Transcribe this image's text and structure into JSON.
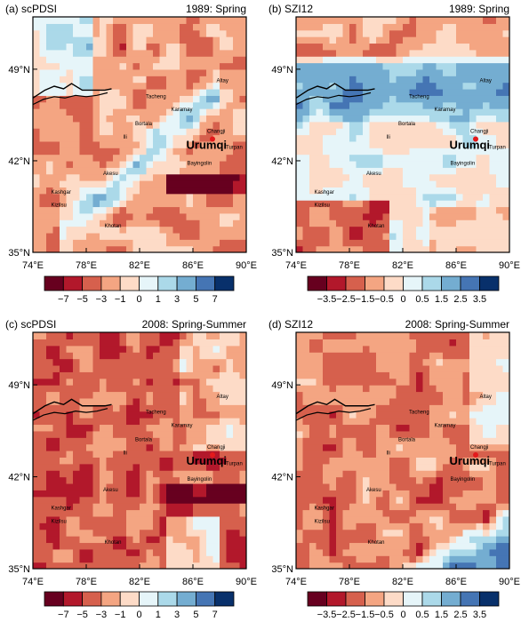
{
  "panels": [
    {
      "label": "(a) scPDSI",
      "period": "1989: Spring",
      "colorbar": [
        "−7",
        "−5",
        "−3",
        "−1",
        "0",
        "1",
        "3",
        "5",
        "7"
      ],
      "pattern": "a"
    },
    {
      "label": "(b) SZI12",
      "period": "1989: Spring",
      "colorbar": [
        "−3.5",
        "−2.5",
        "−1.5",
        "−0.5",
        "0",
        "0.5",
        "1.5",
        "2.5",
        "3.5"
      ],
      "pattern": "b"
    },
    {
      "label": "(c) scPDSI",
      "period": "2008: Spring-Summer",
      "colorbar": [
        "−7",
        "−5",
        "−3",
        "−1",
        "0",
        "1",
        "3",
        "5",
        "7"
      ],
      "pattern": "c"
    },
    {
      "label": "(d) SZI12",
      "period": "2008: Spring-Summer",
      "colorbar": [
        "−3.5",
        "−2.5",
        "−1.5",
        "−0.5",
        "0",
        "0.5",
        "1.5",
        "2.5",
        "3.5"
      ],
      "pattern": "d"
    }
  ],
  "axes": {
    "lat_ticks": [
      "49°N",
      "42°N",
      "35°N"
    ],
    "lon_ticks": [
      "74°E",
      "78°E",
      "82°E",
      "86°E",
      "90°E"
    ]
  },
  "places": [
    {
      "name": "Altay"
    },
    {
      "name": "Tacheng"
    },
    {
      "name": "Karamay"
    },
    {
      "name": "Bortala"
    },
    {
      "name": "Changji"
    },
    {
      "name": "Urumqi"
    },
    {
      "name": "Turpan"
    },
    {
      "name": "Ili"
    },
    {
      "name": "Bayingolin"
    },
    {
      "name": "Akesu"
    },
    {
      "name": "Kashgar"
    },
    {
      "name": "Kizilsu"
    },
    {
      "name": "Khotan"
    }
  ],
  "colors": {
    "dry_scale": [
      "#67001f",
      "#b2182b",
      "#d6604d",
      "#f4a582",
      "#fddbc7"
    ],
    "wet_scale": [
      "#e0f3f8",
      "#abd9e9",
      "#74add1",
      "#4575b4",
      "#08306b"
    ],
    "city_marker": "#e41a1c"
  }
}
